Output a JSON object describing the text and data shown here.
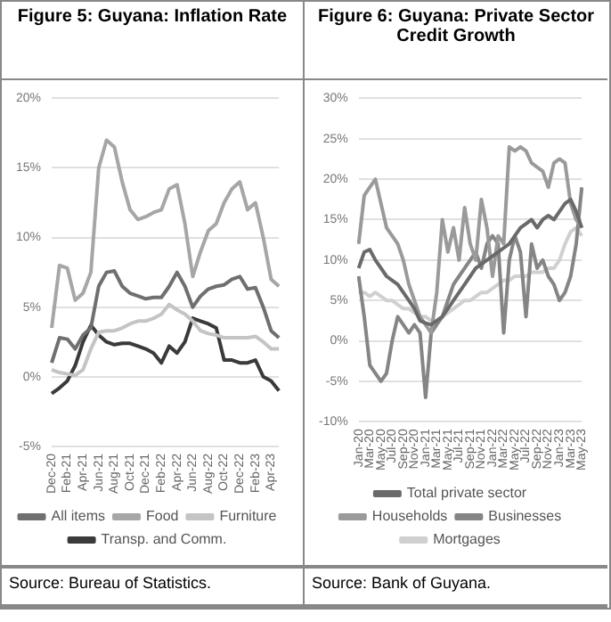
{
  "chart_data": [
    {
      "type": "line",
      "title": "Figure 5: Guyana: Inflation Rate",
      "annotations": [
        "Source: Bureau of Statistics."
      ],
      "categories": [
        "Dec-20",
        null,
        "Feb-21",
        null,
        "Apr-21",
        null,
        "Jun-21",
        null,
        "Aug-21",
        null,
        "Oct-21",
        null,
        "Dec-21",
        null,
        "Feb-22",
        null,
        "Apr-22",
        null,
        "Jun-22",
        null,
        "Aug-22",
        null,
        "Oct-22",
        null,
        "Dec-22",
        null,
        "Feb-23",
        null,
        "Apr-23",
        null
      ],
      "series": [
        {
          "name": "All items",
          "color": "#6f6f6f",
          "values": [
            1,
            2.8,
            2.7,
            2,
            3,
            3.5,
            6.5,
            7.5,
            7.6,
            6.5,
            6,
            5.8,
            5.6,
            5.7,
            5.7,
            6.5,
            7.5,
            6.5,
            5,
            5.8,
            6.3,
            6.5,
            6.6,
            7,
            7.2,
            6.3,
            6.4,
            5,
            3.3,
            2.8
          ]
        },
        {
          "name": "Food",
          "color": "#a6a6a6",
          "values": [
            3.5,
            8,
            7.8,
            5.5,
            6,
            7.5,
            15,
            17,
            16.5,
            14,
            12,
            11.3,
            11.5,
            11.8,
            12,
            13.5,
            13.8,
            11,
            7.2,
            9,
            10.5,
            11,
            12.5,
            13.5,
            14,
            12,
            12.5,
            10,
            7,
            6.5
          ]
        },
        {
          "name": "Furniture",
          "color": "#c4c4c4",
          "values": [
            0.5,
            0.3,
            0.2,
            0.1,
            0.5,
            2,
            3.2,
            3.3,
            3.3,
            3.5,
            3.8,
            4,
            4,
            4.2,
            4.5,
            5.2,
            4.8,
            4.5,
            4,
            3.3,
            3.1,
            3,
            2.8,
            2.8,
            2.8,
            2.8,
            2.9,
            2.5,
            2,
            2
          ]
        },
        {
          "name": "Transp. and Comm.",
          "color": "#3a3a3a",
          "values": [
            -1.2,
            -0.8,
            -0.3,
            0.8,
            2.5,
            3.7,
            3,
            2.5,
            2.3,
            2.4,
            2.4,
            2.2,
            2,
            1.7,
            1,
            2.2,
            1.7,
            2.5,
            4.2,
            4,
            3.8,
            3.5,
            1.2,
            1.2,
            1,
            1,
            1.2,
            0,
            -0.3,
            -1
          ]
        }
      ],
      "ylim": [
        -5,
        20
      ],
      "yticks": [
        {
          "value": -5,
          "label": "-5%"
        },
        {
          "value": 0,
          "label": "0%"
        },
        {
          "value": 5,
          "label": "5%"
        },
        {
          "value": 10,
          "label": "10%"
        },
        {
          "value": 15,
          "label": "15%"
        },
        {
          "value": 20,
          "label": "20%"
        }
      ],
      "grid": "y",
      "legend": "bottom",
      "marker": "none",
      "line_style": "solid"
    },
    {
      "type": "line",
      "title": "Figure 6: Guyana: Private Sector Credit Growth",
      "annotations": [
        "Source: Bank of Guyana."
      ],
      "categories": [
        "Jan-20",
        null,
        "Mar-20",
        null,
        "May-20",
        null,
        "Jul-20",
        null,
        "Sep-20",
        null,
        "Nov-20",
        null,
        "Jan-21",
        null,
        "Mar-21",
        null,
        "May-21",
        null,
        "Jul-21",
        null,
        "Sep-21",
        null,
        "Nov-21",
        null,
        "Jan-22",
        null,
        "Mar-22",
        null,
        "May-22",
        null,
        "Jul-22",
        null,
        "Sep-22",
        null,
        "Nov-22",
        null,
        "Jan-23",
        null,
        "Mar-23",
        null,
        "May-23"
      ],
      "series": [
        {
          "name": "Total private sector",
          "color": "#6a6a6a",
          "values": [
            9,
            11,
            11.3,
            10,
            9,
            8,
            7.5,
            7,
            6,
            5,
            4,
            2.5,
            2.2,
            2,
            2.5,
            3,
            4,
            5,
            6,
            7,
            8,
            9,
            9.5,
            10,
            10.5,
            11,
            11.5,
            12,
            13,
            14,
            14.5,
            15,
            14,
            15,
            15.5,
            15,
            16,
            17,
            17.5,
            16,
            14
          ]
        },
        {
          "name": "Households",
          "color": "#9a9a9a",
          "values": [
            12,
            18,
            19,
            20,
            17,
            14,
            13,
            12,
            10,
            7,
            5,
            3,
            2,
            1,
            6,
            15,
            11,
            14,
            10,
            16.5,
            12,
            10,
            17.5,
            14,
            8,
            13,
            12,
            24,
            23.5,
            24,
            23.5,
            22,
            21.5,
            21,
            19,
            22,
            22.5,
            22,
            17,
            15,
            14
          ]
        },
        {
          "name": "Businesses",
          "color": "#858585",
          "values": [
            8,
            3,
            -3,
            -4,
            -5,
            -4,
            0,
            3,
            2,
            1,
            2,
            1,
            -7,
            1,
            2,
            3,
            5,
            7,
            8,
            9,
            10,
            11,
            9,
            12,
            13,
            12,
            1,
            10,
            13,
            11,
            3,
            12,
            9,
            10,
            8,
            7,
            5,
            6,
            8,
            12,
            19
          ]
        },
        {
          "name": "Mortgages",
          "color": "#d0d0d0",
          "values": [
            6,
            6,
            5.5,
            6,
            5.5,
            5,
            5,
            4.5,
            4,
            4,
            3.5,
            3,
            3,
            2.5,
            2.5,
            3,
            3.5,
            4,
            4.5,
            5,
            5,
            5.5,
            6,
            6,
            6.5,
            7,
            7.5,
            7.5,
            8,
            8,
            8,
            8.5,
            8.5,
            8.5,
            9,
            9,
            10,
            12,
            13.5,
            14,
            13
          ]
        }
      ],
      "ylim": [
        -10,
        30
      ],
      "yticks": [
        {
          "value": -10,
          "label": "-10%"
        },
        {
          "value": -5,
          "label": "-5%"
        },
        {
          "value": 0,
          "label": "0%"
        },
        {
          "value": 5,
          "label": "5%"
        },
        {
          "value": 10,
          "label": "10%"
        },
        {
          "value": 15,
          "label": "15%"
        },
        {
          "value": 20,
          "label": "20%"
        },
        {
          "value": 25,
          "label": "25%"
        },
        {
          "value": 30,
          "label": "30%"
        }
      ],
      "grid": "y",
      "legend": "bottom",
      "marker": "none",
      "line_style": "solid"
    }
  ]
}
